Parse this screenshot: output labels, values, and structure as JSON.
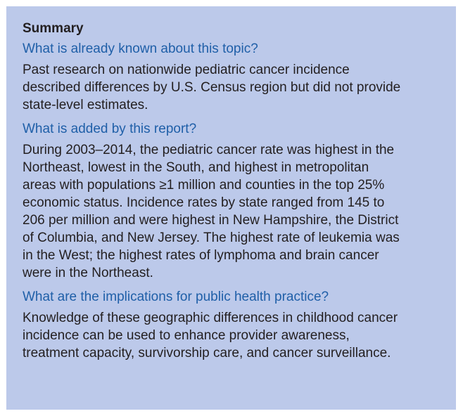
{
  "summary": {
    "title": "Summary",
    "sections": [
      {
        "question": "What is already known about this topic?",
        "lines": [
          "Past research on nationwide pediatric cancer incidence",
          "described differences by U.S. Census region but did not provide",
          "state-level estimates."
        ]
      },
      {
        "question": "What is added by this report?",
        "lines": [
          "During 2003–2014, the pediatric cancer rate was highest in the",
          "Northeast, lowest in the South, and highest in metropolitan",
          "areas with populations ≥1 million and counties in the top 25%",
          "economic status. Incidence rates by state ranged from 145 to",
          "206 per million and were highest in New Hampshire, the District",
          "of Columbia, and New Jersey. The highest rate of leukemia was",
          "in the West; the highest rates of lymphoma and brain cancer",
          "were in the Northeast."
        ]
      },
      {
        "question": "What are the implications for public health practice?",
        "lines": [
          "Knowledge of these geographic differences in childhood cancer",
          "incidence can be used to enhance provider awareness,",
          "treatment capacity, survivorship care, and cancer surveillance."
        ]
      }
    ]
  }
}
